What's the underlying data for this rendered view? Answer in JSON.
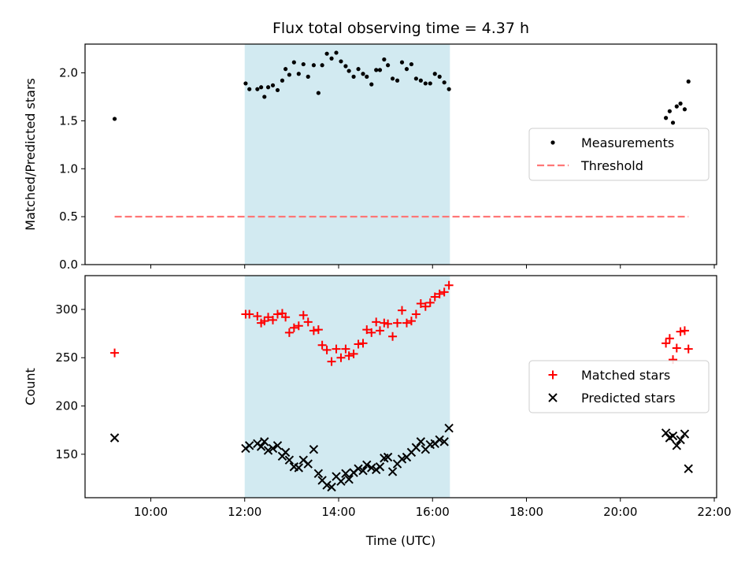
{
  "chart_data": {
    "title": "Flux total observing time = 4.37 h",
    "xlabel": "Time (UTC)",
    "xlim": [
      8.6,
      22.05
    ],
    "xticks": [
      {
        "v": 10,
        "label": "10:00"
      },
      {
        "v": 12,
        "label": "12:00"
      },
      {
        "v": 14,
        "label": "14:00"
      },
      {
        "v": 16,
        "label": "16:00"
      },
      {
        "v": 18,
        "label": "18:00"
      },
      {
        "v": 20,
        "label": "20:00"
      },
      {
        "v": 22,
        "label": "22:00"
      }
    ],
    "shaded_span": {
      "x0": 12.0,
      "x1": 16.37,
      "color": "#add8e6"
    },
    "panels": [
      {
        "type": "scatter",
        "ylabel": "Matched/Predicted stars",
        "ylim": [
          0,
          2.3
        ],
        "yticks": [
          {
            "v": 0.0,
            "label": "0.0"
          },
          {
            "v": 0.5,
            "label": "0.5"
          },
          {
            "v": 1.0,
            "label": "1.0"
          },
          {
            "v": 1.5,
            "label": "1.5"
          },
          {
            "v": 2.0,
            "label": "2.0"
          }
        ],
        "legend_position": "center-right",
        "series": [
          {
            "name": "Measurements",
            "marker": "dot",
            "color": "#000000",
            "x": [
              9.23,
              12.02,
              12.1,
              12.27,
              12.35,
              12.42,
              12.5,
              12.6,
              12.7,
              12.8,
              12.87,
              12.95,
              13.05,
              13.15,
              13.25,
              13.35,
              13.47,
              13.57,
              13.65,
              13.75,
              13.85,
              13.95,
              14.05,
              14.15,
              14.22,
              14.32,
              14.42,
              14.52,
              14.6,
              14.7,
              14.8,
              14.88,
              14.97,
              15.05,
              15.15,
              15.25,
              15.35,
              15.45,
              15.55,
              15.65,
              15.75,
              15.85,
              15.95,
              16.05,
              16.15,
              16.25,
              16.35,
              20.97,
              21.05,
              21.12,
              21.2,
              21.28,
              21.37,
              21.45
            ],
            "y": [
              1.52,
              1.89,
              1.83,
              1.83,
              1.85,
              1.75,
              1.85,
              1.87,
              1.82,
              1.92,
              2.04,
              1.98,
              2.11,
              1.99,
              2.09,
              1.96,
              2.08,
              1.79,
              2.08,
              2.2,
              2.15,
              2.21,
              2.12,
              2.07,
              2.02,
              1.96,
              2.04,
              1.99,
              1.96,
              1.88,
              2.03,
              2.03,
              2.14,
              2.08,
              1.94,
              1.92,
              2.11,
              2.04,
              2.09,
              1.94,
              1.92,
              1.89,
              1.89,
              1.99,
              1.96,
              1.9,
              1.83,
              1.53,
              1.6,
              1.48,
              1.65,
              1.68,
              1.62,
              1.91
            ]
          },
          {
            "name": "Threshold",
            "marker": "dashed-line",
            "color": "#ff7777",
            "x": [
              9.23,
              21.45
            ],
            "y": [
              0.5,
              0.5
            ]
          }
        ]
      },
      {
        "type": "scatter",
        "ylabel": "Count",
        "ylim": [
          105,
          335
        ],
        "yticks": [
          {
            "v": 150,
            "label": "150"
          },
          {
            "v": 200,
            "label": "200"
          },
          {
            "v": 250,
            "label": "250"
          },
          {
            "v": 300,
            "label": "300"
          }
        ],
        "legend_position": "center-right",
        "series": [
          {
            "name": "Matched stars",
            "marker": "plus",
            "color": "#ff0000",
            "x": [
              9.23,
              12.02,
              12.1,
              12.27,
              12.35,
              12.42,
              12.5,
              12.6,
              12.7,
              12.8,
              12.87,
              12.95,
              13.05,
              13.15,
              13.25,
              13.35,
              13.47,
              13.57,
              13.65,
              13.75,
              13.85,
              13.95,
              14.05,
              14.15,
              14.22,
              14.32,
              14.42,
              14.52,
              14.6,
              14.7,
              14.8,
              14.88,
              14.97,
              15.05,
              15.15,
              15.25,
              15.35,
              15.45,
              15.55,
              15.65,
              15.75,
              15.85,
              15.95,
              16.05,
              16.15,
              16.25,
              16.35,
              20.97,
              21.05,
              21.12,
              21.2,
              21.28,
              21.37,
              21.45
            ],
            "y": [
              255,
              295,
              295,
              293,
              286,
              288,
              292,
              289,
              295,
              296,
              292,
              276,
              281,
              283,
              294,
              287,
              278,
              279,
              263,
              258,
              246,
              259,
              250,
              259,
              252,
              254,
              264,
              265,
              279,
              276,
              287,
              278,
              286,
              285,
              272,
              286,
              299,
              286,
              288,
              295,
              306,
              303,
              307,
              313,
              316,
              318,
              325,
              265,
              270,
              248,
              260,
              277,
              278,
              259
            ]
          },
          {
            "name": "Predicted stars",
            "marker": "x",
            "color": "#000000",
            "x": [
              9.23,
              12.02,
              12.1,
              12.27,
              12.35,
              12.42,
              12.5,
              12.6,
              12.7,
              12.8,
              12.87,
              12.95,
              13.05,
              13.15,
              13.25,
              13.35,
              13.47,
              13.57,
              13.65,
              13.75,
              13.85,
              13.95,
              14.05,
              14.15,
              14.22,
              14.32,
              14.42,
              14.52,
              14.6,
              14.7,
              14.8,
              14.88,
              14.97,
              15.05,
              15.15,
              15.25,
              15.35,
              15.45,
              15.55,
              15.65,
              15.75,
              15.85,
              15.95,
              16.05,
              16.15,
              16.25,
              16.35,
              20.97,
              21.05,
              21.12,
              21.2,
              21.28,
              21.37,
              21.45
            ],
            "y": [
              167,
              156,
              159,
              161,
              158,
              163,
              154,
              156,
              159,
              148,
              152,
              144,
              137,
              136,
              144,
              140,
              155,
              130,
              123,
              118,
              116,
              127,
              122,
              130,
              124,
              131,
              135,
              133,
              139,
              136,
              134,
              137,
              146,
              147,
              132,
              140,
              145,
              147,
              152,
              157,
              163,
              155,
              160,
              161,
              165,
              163,
              177,
              172,
              167,
              169,
              159,
              165,
              171,
              135
            ]
          }
        ]
      }
    ]
  }
}
